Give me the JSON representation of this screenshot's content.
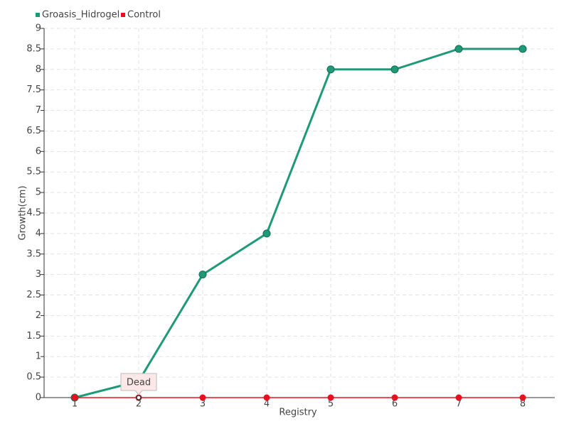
{
  "chart_data": {
    "type": "line",
    "x_label": "Registry",
    "y_label": "Growth(cm)",
    "categories": [
      "1",
      "2",
      "3",
      "4",
      "5",
      "6",
      "7",
      "8"
    ],
    "series": [
      {
        "name": "Groasis_Hidrogel",
        "color": "#1f9a78",
        "values": [
          0,
          0.4,
          3,
          4,
          8,
          8,
          8.5,
          8.5
        ]
      },
      {
        "name": "Control",
        "color": "#e8101e",
        "values": [
          0,
          0,
          0,
          0,
          0,
          0,
          0,
          0
        ]
      }
    ],
    "annotation": "Dead",
    "ylim": [
      0,
      9
    ],
    "yticks": [
      0,
      0.5,
      1,
      1.5,
      2,
      2.5,
      3,
      3.5,
      4,
      4.5,
      5,
      5.5,
      6,
      6.5,
      7,
      7.5,
      8,
      8.5,
      9
    ],
    "grid": true
  }
}
